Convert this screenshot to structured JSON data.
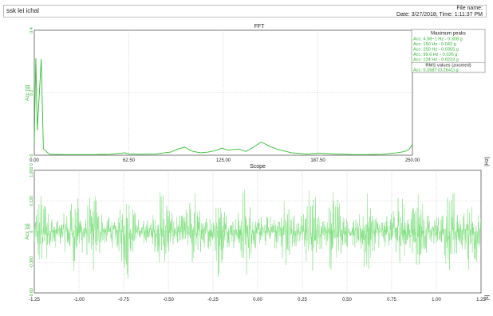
{
  "header": {
    "session": "ssk lei ichal",
    "file_name_label": "File name:",
    "datetime": "Date: 3/27/2018; Time: 1:11:37 PM"
  },
  "colors": {
    "signal": "#7fe07f",
    "signal_dark": "#2fbf2f",
    "grid": "#c9c9c9",
    "axis": "#222222",
    "panel_text": "#2db52d"
  },
  "chart_data": [
    {
      "type": "line",
      "title": "FFT",
      "xlabel": "[Hz]",
      "ylabel": "Acc [g]",
      "xlim": [
        0,
        250
      ],
      "ylim": [
        0,
        0.4
      ],
      "x_ticks": [
        "0.00",
        "62.50",
        "125.00",
        "187.50",
        "250.00"
      ],
      "y_ticks": [
        "0",
        "0.2",
        "0.4"
      ],
      "grid": true,
      "peaks_panel": {
        "title": "Maximum peaks",
        "items": [
          "Acc: 4.58~1 Hz - 0.308 g",
          "Acc: 150 Hz - 0.042 g",
          "Acc: 250 Hz - 0.0355 g",
          "Acc: 99.6 Hz - 0.026 g",
          "Acc: 124 Hz - 0.0223 g"
        ],
        "rms_title": "RMS values (zoomed)",
        "rms_value": "Acc: 0.2687 (0.2641) g"
      },
      "series": [
        {
          "x": [
            0,
            1,
            2,
            4.58,
            6,
            10,
            20,
            30,
            40,
            50,
            60,
            62.5,
            70,
            80,
            90,
            95,
            99.6,
            102,
            105,
            110,
            115,
            120,
            124,
            128,
            135,
            140,
            145,
            150,
            155,
            160,
            170,
            180,
            187.5,
            190,
            200,
            210,
            220,
            230,
            240,
            245,
            248,
            250
          ],
          "y": [
            0.04,
            0.31,
            0.08,
            0.308,
            0.02,
            0.003,
            0.002,
            0.002,
            0.002,
            0.003,
            0.008,
            0.004,
            0.003,
            0.004,
            0.01,
            0.02,
            0.026,
            0.018,
            0.012,
            0.008,
            0.01,
            0.015,
            0.0223,
            0.016,
            0.02,
            0.012,
            0.026,
            0.042,
            0.03,
            0.02,
            0.008,
            0.004,
            0.006,
            0.006,
            0.004,
            0.002,
            0.002,
            0.003,
            0.008,
            0.012,
            0.02,
            0.0355
          ]
        }
      ]
    },
    {
      "type": "line",
      "title": "Scope",
      "xlabel": "[s]",
      "ylabel": "Acc [g]",
      "xlim": [
        -1.25,
        1.25
      ],
      "ylim": [
        -0.6,
        0.6
      ],
      "x_ticks": [
        "-1.25",
        "-1.00",
        "-0.75",
        "-0.50",
        "-0.25",
        "0.00",
        "0.25",
        "0.50",
        "0.75",
        "1.00",
        "1.25"
      ],
      "y_ticks": [
        "-0.60",
        "-0.300",
        "0",
        "0.120",
        "1.000 0"
      ],
      "grid": true,
      "burst_centers": [
        -1.21,
        -1.03,
        -0.92,
        -0.73,
        -0.53,
        -0.36,
        -0.22,
        -0.07,
        0.15,
        0.3,
        0.43,
        0.61,
        0.79,
        0.9,
        1.08,
        1.2
      ],
      "burst_amplitude": 0.48,
      "baseline_amplitude": 0.16
    }
  ]
}
